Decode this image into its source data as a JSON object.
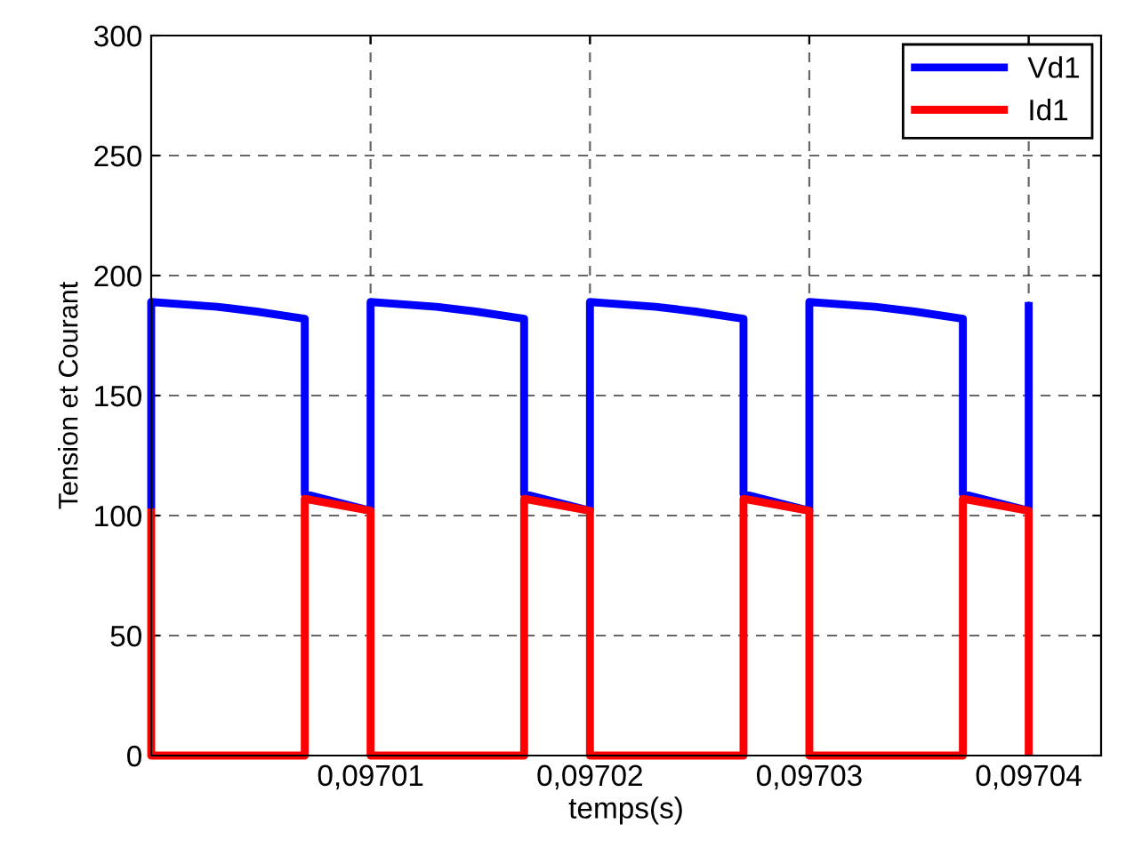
{
  "chart_data": {
    "type": "line",
    "xlabel": "temps(s)",
    "ylabel": "Tension et Courant",
    "series": [
      {
        "name": "Vd1",
        "color": "#0000ff",
        "x": [
          0.097,
          0.097,
          0.097003,
          0.0970048,
          0.097007,
          0.097007,
          0.09701,
          0.09701,
          0.097013,
          0.0970148,
          0.097017,
          0.097017,
          0.09702,
          0.09702,
          0.097023,
          0.0970248,
          0.097027,
          0.097027,
          0.09703,
          0.09703,
          0.097033,
          0.0970348,
          0.097037,
          0.097037,
          0.09704,
          0.09704
        ],
        "values": [
          103,
          189,
          187,
          185,
          182,
          109,
          102,
          189,
          187,
          185,
          182,
          109,
          102,
          189,
          187,
          185,
          182,
          109,
          102,
          189,
          187,
          185,
          182,
          109,
          102,
          189
        ]
      },
      {
        "name": "Id1",
        "color": "#ff0000",
        "x": [
          0.097,
          0.097,
          0.097007,
          0.097007,
          0.09701,
          0.09701,
          0.097017,
          0.097017,
          0.09702,
          0.09702,
          0.097027,
          0.097027,
          0.09703,
          0.09703,
          0.097037,
          0.097037,
          0.09704,
          0.09704
        ],
        "values": [
          103,
          0,
          0,
          107,
          102,
          0,
          0,
          107,
          102,
          0,
          0,
          107,
          102,
          0,
          0,
          107,
          102,
          0
        ]
      }
    ],
    "xlim": [
      0.097,
      0.0970433
    ],
    "xticks": [
      {
        "value": 0.09701,
        "label": "0,09701"
      },
      {
        "value": 0.09702,
        "label": "0,09702"
      },
      {
        "value": 0.09703,
        "label": "0,09703"
      },
      {
        "value": 0.09704,
        "label": "0,09704"
      }
    ],
    "ylim": [
      0,
      300
    ],
    "yticks": [
      0,
      50,
      100,
      150,
      200,
      250,
      300
    ],
    "grid": true,
    "legend": "top right",
    "line_style": "solid",
    "marker": "none"
  }
}
